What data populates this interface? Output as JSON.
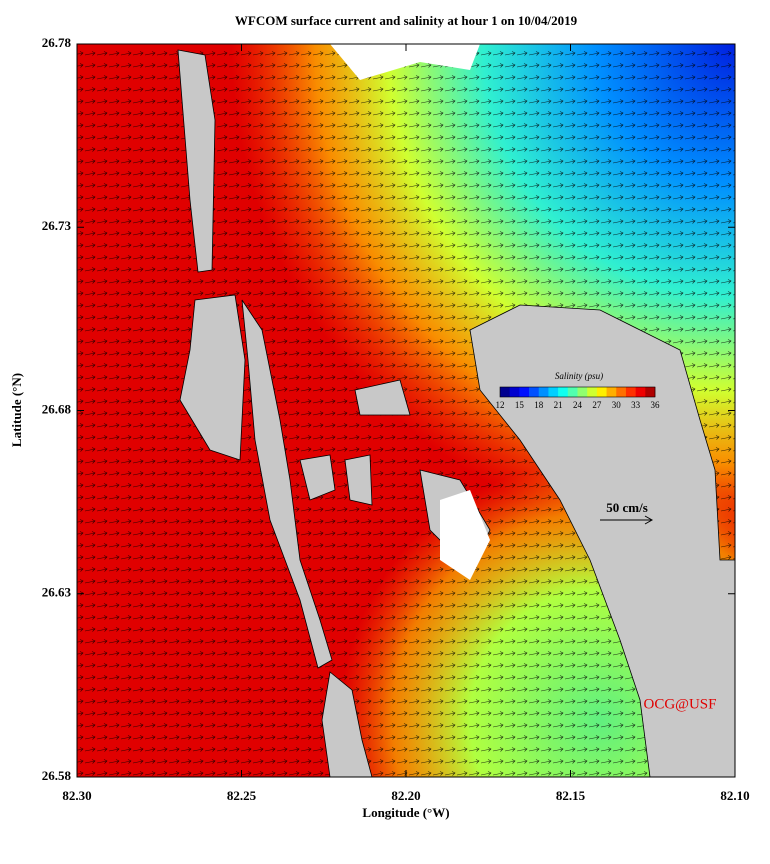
{
  "chart_data": {
    "type": "map",
    "title": "WFCOM surface current and salinity at hour 1 on 10/04/2019",
    "x_label": "Longitude (°W)",
    "y_label": "Latitude (°N)",
    "xlim": [
      82.3,
      82.1
    ],
    "ylim": [
      26.58,
      26.78
    ],
    "xticks": [
      {
        "value": 82.3,
        "label": "82.30"
      },
      82.25,
      {
        "value": 82.2,
        "label": "82.20"
      },
      82.15,
      {
        "value": 82.1,
        "label": "82.10"
      }
    ],
    "yticks": [
      26.58,
      26.63,
      26.68,
      26.73,
      26.78
    ],
    "colorbar": {
      "label": "Salinity (psu)",
      "range": [
        12,
        36
      ],
      "ticks": [
        12,
        15,
        18,
        21,
        24,
        27,
        30,
        33,
        36
      ],
      "colors": [
        "#00008f",
        "#0000cf",
        "#0010ff",
        "#0050ff",
        "#0090ff",
        "#00cfff",
        "#10ffef",
        "#50ffaf",
        "#90ff6f",
        "#cfff30",
        "#ffef00",
        "#ffaf00",
        "#ff7000",
        "#ff3000",
        "#ef0000",
        "#af0000"
      ]
    },
    "scale_label": "50 cm/s",
    "credit": "OCG@USF"
  }
}
